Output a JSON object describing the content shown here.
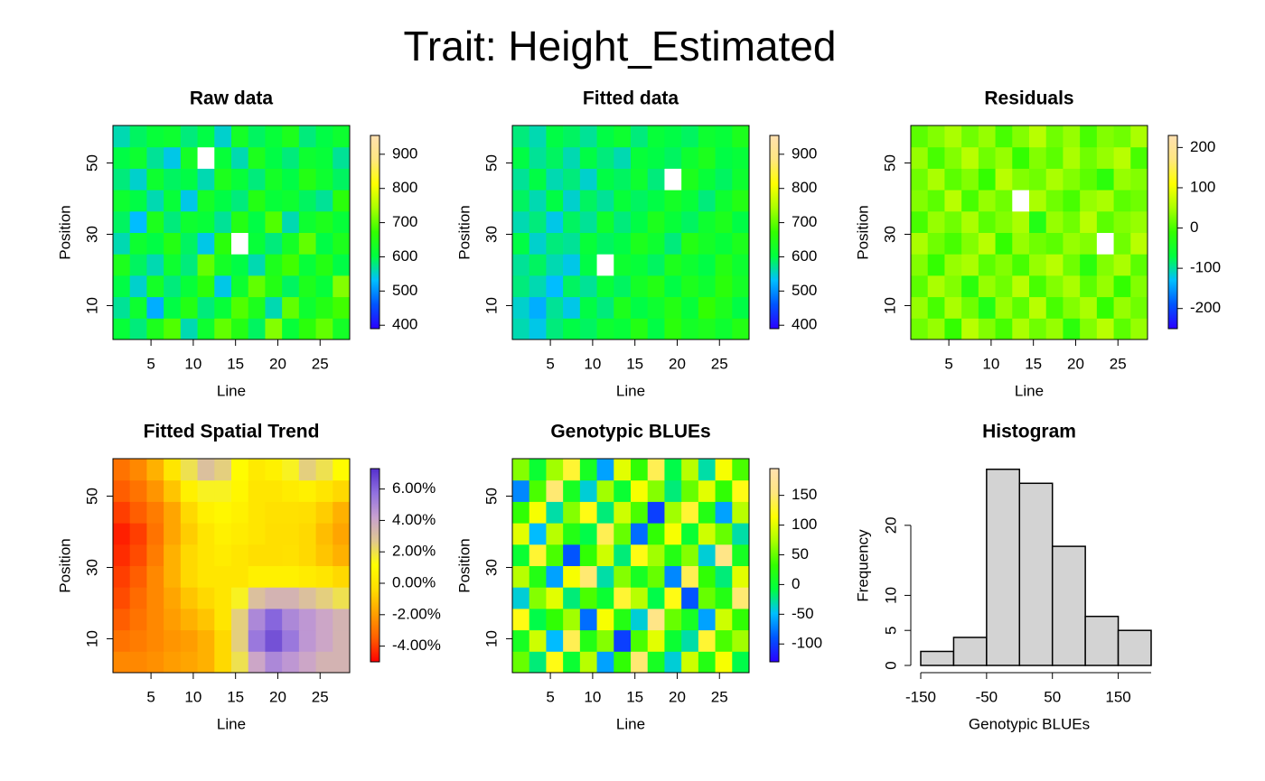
{
  "title": "Trait: Height_Estimated",
  "chart_data": [
    {
      "type": "heatmap",
      "title": "Raw data",
      "x_label": "Line",
      "y_label": "Position",
      "xlim": [
        0.5,
        28.5
      ],
      "ylim": [
        0.5,
        60.5
      ],
      "xticks": [
        5,
        10,
        15,
        20,
        25
      ],
      "yticks": [
        10,
        30,
        50
      ],
      "zlim": [
        390,
        955
      ],
      "zticks": [
        400,
        500,
        600,
        700,
        800,
        900
      ],
      "colors": [
        "#2b00ff",
        "#0055ff",
        "#00bfff",
        "#00ff40",
        "#33ff00",
        "#aaff00",
        "#ffff00",
        "#ffe680",
        "#ffe0b0"
      ],
      "z": [
        [
          610,
          580,
          640,
          690,
          560,
          620,
          700,
          650,
          590,
          720,
          610,
          660,
          700,
          630
        ],
        [
          570,
          620,
          520,
          600,
          650,
          580,
          610,
          690,
          640,
          560,
          700,
          620,
          650,
          680
        ],
        [
          600,
          550,
          630,
          580,
          610,
          660,
          540,
          620,
          700,
          650,
          590,
          640,
          610,
          720
        ],
        [
          640,
          590,
          560,
          620,
          580,
          700,
          630,
          600,
          560,
          640,
          680,
          610,
          650,
          600
        ],
        [
          560,
          620,
          600,
          650,
          590,
          540,
          660,
          null,
          610,
          580,
          630,
          700,
          600,
          640
        ],
        [
          590,
          530,
          640,
          580,
          620,
          610,
          570,
          650,
          600,
          690,
          560,
          620,
          640,
          610
        ],
        [
          620,
          600,
          560,
          610,
          540,
          630,
          600,
          580,
          650,
          610,
          620,
          590,
          570,
          660
        ],
        [
          580,
          550,
          620,
          590,
          600,
          560,
          640,
          610,
          580,
          630,
          600,
          650,
          620,
          590
        ],
        [
          600,
          620,
          570,
          540,
          630,
          null,
          610,
          560,
          640,
          600,
          580,
          620,
          610,
          570
        ],
        [
          560,
          590,
          610,
          620,
          580,
          600,
          550,
          630,
          590,
          610,
          640,
          580,
          600,
          620
        ]
      ]
    },
    {
      "type": "heatmap",
      "title": "Fitted data",
      "x_label": "Line",
      "y_label": "Position",
      "xlim": [
        0.5,
        28.5
      ],
      "ylim": [
        0.5,
        60.5
      ],
      "xticks": [
        5,
        10,
        15,
        20,
        25
      ],
      "yticks": [
        10,
        30,
        50
      ],
      "zlim": [
        390,
        955
      ],
      "zticks": [
        400,
        500,
        600,
        700,
        800,
        900
      ],
      "colors": [
        "#2b00ff",
        "#0055ff",
        "#00bfff",
        "#00ff40",
        "#33ff00",
        "#aaff00",
        "#ffff00",
        "#ffe680",
        "#ffe0b0"
      ],
      "z": [
        [
          560,
          540,
          580,
          600,
          590,
          620,
          610,
          650,
          600,
          660,
          630,
          640,
          620,
          650
        ],
        [
          550,
          520,
          570,
          540,
          600,
          580,
          640,
          600,
          620,
          650,
          610,
          670,
          640,
          600
        ],
        [
          580,
          560,
          530,
          590,
          570,
          610,
          590,
          630,
          650,
          600,
          640,
          620,
          660,
          630
        ],
        [
          570,
          590,
          560,
          540,
          600,
          null,
          620,
          610,
          590,
          640,
          620,
          600,
          650,
          620
        ],
        [
          600,
          550,
          580,
          570,
          610,
          590,
          600,
          640,
          620,
          580,
          650,
          630,
          610,
          640
        ],
        [
          560,
          580,
          540,
          590,
          570,
          620,
          580,
          600,
          640,
          610,
          590,
          620,
          640,
          600
        ],
        [
          590,
          560,
          600,
          550,
          590,
          570,
          610,
          590,
          600,
          630,
          610,
          580,
          620,
          650
        ],
        [
          570,
          600,
          560,
          580,
          550,
          600,
          590,
          620,
          580,
          null,
          640,
          610,
          590,
          620
        ],
        [
          600,
          570,
          590,
          560,
          600,
          580,
          560,
          610,
          600,
          590,
          620,
          640,
          600,
          610
        ],
        [
          580,
          560,
          600,
          590,
          570,
          600,
          620,
          580,
          610,
          600,
          590,
          620,
          610,
          640
        ]
      ]
    },
    {
      "type": "heatmap",
      "title": "Residuals",
      "x_label": "Line",
      "y_label": "Position",
      "xlim": [
        0.5,
        28.5
      ],
      "ylim": [
        0.5,
        60.5
      ],
      "xticks": [
        5,
        10,
        15,
        20,
        25
      ],
      "yticks": [
        10,
        30,
        50
      ],
      "zlim": [
        -250,
        230
      ],
      "zticks": [
        -200,
        -100,
        0,
        100,
        200
      ],
      "colors": [
        "#2b00ff",
        "#0055ff",
        "#00bfff",
        "#00ff40",
        "#33ff00",
        "#aaff00",
        "#ffff00",
        "#ffe680",
        "#ffe0b0"
      ],
      "z": [
        [
          20,
          40,
          -10,
          60,
          30,
          0,
          50,
          20,
          40,
          -20,
          30,
          60,
          10,
          40
        ],
        [
          40,
          0,
          50,
          20,
          -30,
          40,
          10,
          60,
          0,
          30,
          50,
          -10,
          40,
          20
        ],
        [
          10,
          50,
          30,
          -20,
          40,
          20,
          60,
          0,
          30,
          50,
          10,
          40,
          -10,
          30
        ],
        [
          30,
          -10,
          40,
          50,
          10,
          30,
          0,
          40,
          60,
          20,
          -20,
          30,
          50,
          10
        ],
        [
          50,
          20,
          0,
          30,
          60,
          -10,
          40,
          20,
          10,
          40,
          30,
          null,
          20,
          60
        ],
        [
          0,
          40,
          20,
          50,
          10,
          30,
          50,
          -30,
          40,
          20,
          60,
          10,
          30,
          40
        ],
        [
          30,
          10,
          60,
          0,
          40,
          20,
          null,
          50,
          20,
          0,
          40,
          50,
          10,
          20
        ],
        [
          20,
          50,
          10,
          30,
          -10,
          60,
          30,
          20,
          50,
          30,
          10,
          -20,
          40,
          30
        ],
        [
          40,
          0,
          30,
          60,
          20,
          40,
          -10,
          30,
          10,
          50,
          20,
          40,
          60,
          0
        ],
        [
          10,
          30,
          50,
          20,
          40,
          0,
          30,
          60,
          20,
          40,
          0,
          30,
          20,
          50
        ]
      ]
    },
    {
      "type": "heatmap",
      "title": "Fitted Spatial Trend",
      "x_label": "Line",
      "y_label": "Position",
      "xlim": [
        0.5,
        28.5
      ],
      "ylim": [
        0.5,
        60.5
      ],
      "xticks": [
        5,
        10,
        15,
        20,
        25
      ],
      "yticks": [
        10,
        30,
        50
      ],
      "zlim": [
        -5,
        7.3
      ],
      "zticks": [
        {
          "value": -4,
          "label": "-4.00%"
        },
        {
          "value": -2,
          "label": "-2.00%"
        },
        {
          "value": 0,
          "label": "0.00%"
        },
        {
          "value": 2,
          "label": "2.00%"
        },
        {
          "value": 4,
          "label": "4.00%"
        },
        {
          "value": 6,
          "label": "6.00%"
        }
      ],
      "colors": [
        "#ff0000",
        "#ff6000",
        "#ffa000",
        "#ffdd00",
        "#ffff00",
        "#e0c890",
        "#c8a0d0",
        "#9070e0",
        "#5530cc"
      ],
      "z": [
        [
          -2.5,
          -2.5,
          -2.3,
          -2,
          -1.8,
          -1.5,
          -0.5,
          2,
          4,
          5,
          4.5,
          4,
          3.5,
          3.5
        ],
        [
          -3,
          -2.8,
          -2.5,
          -2.2,
          -2,
          -1.5,
          -0.5,
          2.5,
          5.5,
          6.5,
          5.5,
          4.5,
          4,
          3.5
        ],
        [
          -3.5,
          -3,
          -2.5,
          -2,
          -1.5,
          -1,
          0,
          2.5,
          5,
          6,
          5,
          4.5,
          4,
          3.5
        ],
        [
          -3.8,
          -3.2,
          -2.5,
          -1.8,
          -1,
          -0.5,
          0,
          1.5,
          3,
          3.5,
          3.5,
          3,
          2.5,
          2
        ],
        [
          -4,
          -3.5,
          -2.5,
          -1.5,
          -0.5,
          0,
          0,
          0,
          0.5,
          0.5,
          0.5,
          0.3,
          0,
          -0.5
        ],
        [
          -4.3,
          -3.8,
          -2.8,
          -1.5,
          -0.5,
          0,
          0.3,
          0,
          -0.3,
          -0.3,
          -0.2,
          -0.5,
          -1,
          -1.5
        ],
        [
          -4.5,
          -4,
          -3,
          -1.8,
          -0.8,
          0,
          0.5,
          0.3,
          0,
          -0.3,
          -0.3,
          -0.5,
          -1.2,
          -1.8
        ],
        [
          -4,
          -3.5,
          -2.8,
          -1.8,
          -0.5,
          0.5,
          0.8,
          0.5,
          0,
          -0.2,
          -0.2,
          -0.3,
          -0.8,
          -1.5
        ],
        [
          -3.5,
          -3,
          -2.2,
          -1,
          0.5,
          1.5,
          1.5,
          0.8,
          0,
          0,
          0.3,
          0.5,
          0,
          -0.5
        ],
        [
          -3,
          -2.5,
          -1.5,
          0,
          2,
          3,
          2.5,
          1,
          0.2,
          0.5,
          1.5,
          2.5,
          2,
          1
        ]
      ]
    },
    {
      "type": "heatmap",
      "title": "Genotypic BLUEs",
      "x_label": "Line",
      "y_label": "Position",
      "xlim": [
        0.5,
        28.5
      ],
      "ylim": [
        0.5,
        60.5
      ],
      "xticks": [
        5,
        10,
        15,
        20,
        25
      ],
      "yticks": [
        10,
        30,
        50
      ],
      "zlim": [
        -130,
        195
      ],
      "zticks": [
        -100,
        -50,
        0,
        50,
        100,
        150
      ],
      "colors": [
        "#2b00ff",
        "#0055ff",
        "#00bfff",
        "#00ff40",
        "#33ff00",
        "#aaff00",
        "#ffff00",
        "#ffe680",
        "#ffe0b0"
      ],
      "z": [
        [
          50,
          -20,
          120,
          0,
          80,
          -60,
          30,
          150,
          10,
          -40,
          90,
          20,
          110,
          -10
        ],
        [
          10,
          90,
          -50,
          140,
          20,
          60,
          -100,
          40,
          100,
          0,
          -30,
          130,
          40,
          70
        ],
        [
          120,
          -10,
          30,
          70,
          -80,
          110,
          20,
          -40,
          160,
          50,
          10,
          -60,
          90,
          30
        ],
        [
          -40,
          60,
          100,
          -20,
          40,
          0,
          130,
          80,
          -10,
          120,
          -90,
          50,
          20,
          150
        ],
        [
          80,
          20,
          -60,
          110,
          150,
          -30,
          60,
          10,
          50,
          -70,
          140,
          30,
          -20,
          100
        ],
        [
          0,
          130,
          40,
          -90,
          30,
          90,
          -20,
          120,
          70,
          20,
          60,
          -40,
          160,
          10
        ],
        [
          100,
          -50,
          80,
          20,
          -10,
          140,
          50,
          -80,
          30,
          110,
          0,
          90,
          50,
          -30
        ],
        [
          30,
          110,
          -30,
          60,
          120,
          -20,
          90,
          40,
          -100,
          70,
          130,
          20,
          -60,
          80
        ],
        [
          -70,
          40,
          150,
          10,
          -40,
          70,
          0,
          110,
          60,
          -20,
          50,
          100,
          30,
          120
        ],
        [
          60,
          0,
          70,
          130,
          10,
          -60,
          100,
          30,
          140,
          -10,
          80,
          -30,
          110,
          40
        ]
      ]
    },
    {
      "type": "histogram",
      "title": "Histogram",
      "x_label": "Genotypic BLUEs",
      "y_label": "Frequency",
      "bins": [
        -150,
        -100,
        -50,
        0,
        50,
        100,
        150,
        200
      ],
      "values": [
        2,
        4,
        28,
        26,
        17,
        7,
        5
      ],
      "color": "#d3d3d3",
      "xlim": [
        -150,
        200
      ],
      "ylim": [
        0,
        29
      ],
      "xticks": [
        -150,
        -50,
        50,
        150
      ],
      "yticks": [
        0,
        5,
        10,
        20
      ]
    }
  ]
}
